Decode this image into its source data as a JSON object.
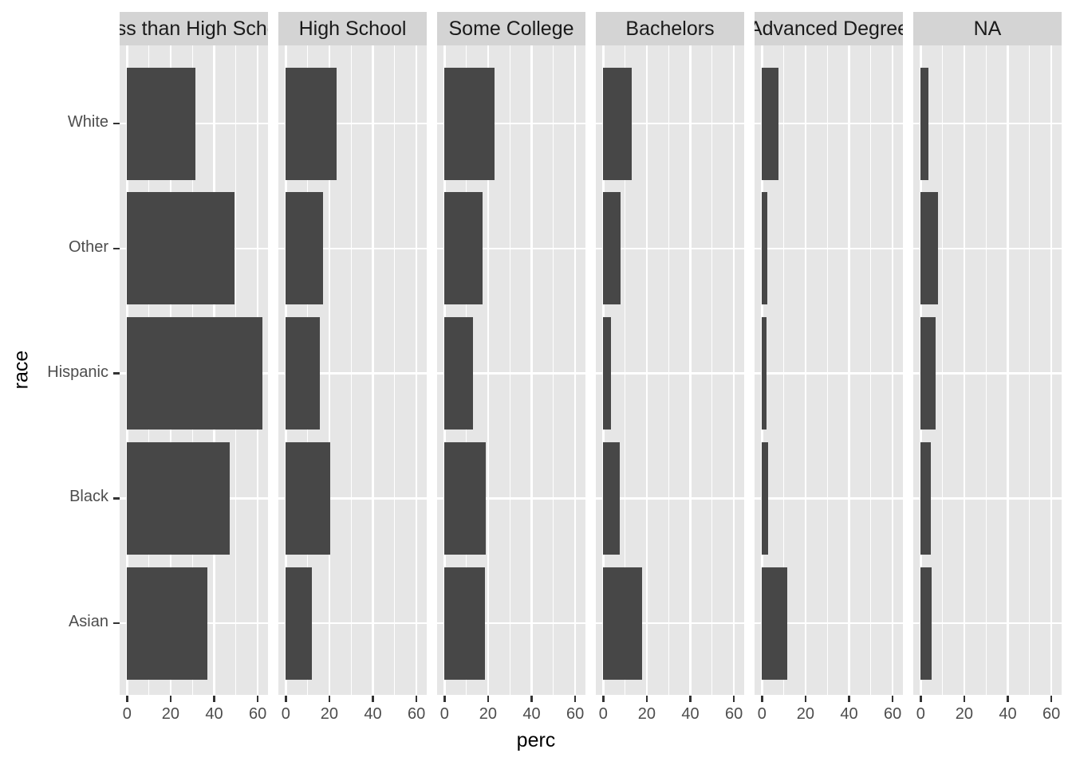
{
  "chart_data": {
    "type": "bar",
    "orientation": "horizontal",
    "title": "",
    "xlabel": "perc",
    "ylabel": "race",
    "facet_labels": [
      "Less than High School",
      "High School",
      "Some College",
      "Bachelors",
      "Advanced Degree",
      "NA"
    ],
    "categories": [
      "White",
      "Other",
      "Hispanic",
      "Black",
      "Asian"
    ],
    "series": [
      {
        "name": "Less than High School",
        "values": [
          31.5,
          49.5,
          62,
          47,
          37
        ]
      },
      {
        "name": "High School",
        "values": [
          23.5,
          17,
          15.5,
          20.5,
          12
        ]
      },
      {
        "name": "Some College",
        "values": [
          23,
          17.5,
          13,
          19,
          18.5
        ]
      },
      {
        "name": "Bachelors",
        "values": [
          13,
          8,
          3.5,
          7.5,
          18
        ]
      },
      {
        "name": "Advanced Degree",
        "values": [
          7.5,
          2.5,
          2,
          3,
          11.5
        ]
      },
      {
        "name": "NA",
        "values": [
          3.5,
          8,
          7,
          4.5,
          5
        ]
      }
    ],
    "x_ticks": [
      0,
      20,
      40,
      60
    ],
    "x_minor_ticks": [
      10,
      30,
      50
    ],
    "xlim": [
      -3.4,
      64.7
    ],
    "grid": "white major and minor gridlines on gray panel",
    "legend": "none"
  },
  "colors": {
    "bar_fill": "#474747",
    "panel_background": "#E6E6E6",
    "strip_background": "#D4D4D4",
    "gridline": "#FFFFFF",
    "tick_mark": "#333333",
    "tick_label_text": "#4D4D4D",
    "axis_title_text": "#000000",
    "figure_background": "#FFFFFF"
  }
}
